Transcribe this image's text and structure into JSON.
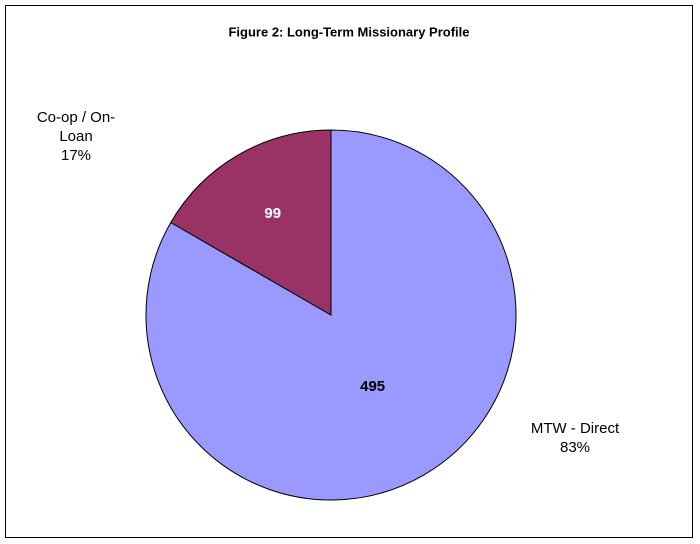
{
  "chart_data": {
    "type": "pie",
    "title": "Figure 2: Long-Term Missionary Profile",
    "categories": [
      "MTW - Direct",
      "Co-op / On-Loan"
    ],
    "values": [
      495,
      99
    ],
    "percent_labels": [
      "83%",
      "17%"
    ],
    "colors": [
      "#9999ff",
      "#993366"
    ],
    "value_label_colors": [
      "#000000",
      "#ffffff"
    ]
  }
}
